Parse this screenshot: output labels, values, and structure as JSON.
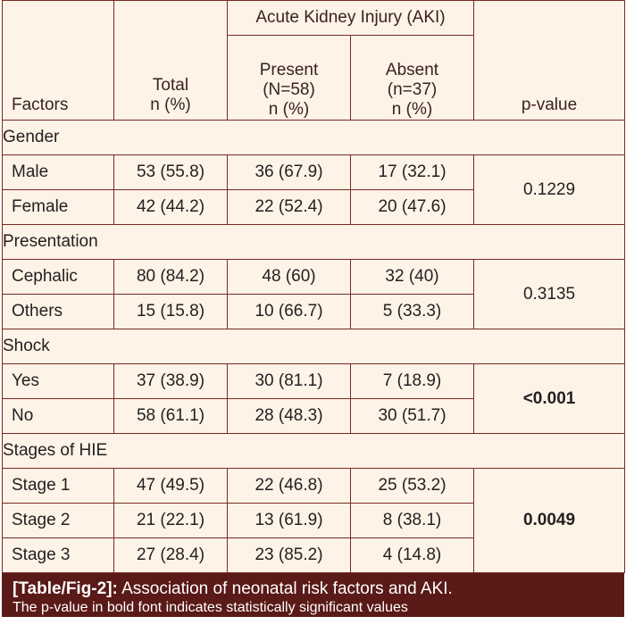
{
  "header": {
    "factors": "Factors",
    "total": [
      "Total",
      "n (%)"
    ],
    "aki_group": "Acute Kidney Injury (AKI)",
    "present": [
      "Present",
      "(N=58)",
      "n (%)"
    ],
    "absent": [
      "Absent",
      "(n=37)",
      "n (%)"
    ],
    "pvalue": "p-value"
  },
  "sections": [
    {
      "title": "Gender",
      "pvalue": "0.1229",
      "significant": false,
      "rows": [
        {
          "factor": "Male",
          "total": "53 (55.8)",
          "present": "36 (67.9)",
          "absent": "17 (32.1)"
        },
        {
          "factor": "Female",
          "total": "42 (44.2)",
          "present": "22 (52.4)",
          "absent": "20 (47.6)"
        }
      ]
    },
    {
      "title": "Presentation",
      "pvalue": "0.3135",
      "significant": false,
      "rows": [
        {
          "factor": "Cephalic",
          "total": "80 (84.2)",
          "present": "48 (60)",
          "absent": "32 (40)"
        },
        {
          "factor": "Others",
          "total": "15 (15.8)",
          "present": "10 (66.7)",
          "absent": "5 (33.3)"
        }
      ]
    },
    {
      "title": "Shock",
      "pvalue": "<0.001",
      "significant": true,
      "rows": [
        {
          "factor": "Yes",
          "total": "37 (38.9)",
          "present": "30 (81.1)",
          "absent": "7 (18.9)"
        },
        {
          "factor": "No",
          "total": "58 (61.1)",
          "present": "28 (48.3)",
          "absent": "30 (51.7)"
        }
      ]
    },
    {
      "title": "Stages of HIE",
      "pvalue": "0.0049",
      "significant": true,
      "rows": [
        {
          "factor": "Stage 1",
          "total": "47 (49.5)",
          "present": "22 (46.8)",
          "absent": "25 (53.2)"
        },
        {
          "factor": "Stage 2",
          "total": "21 (22.1)",
          "present": "13 (61.9)",
          "absent": "8 (38.1)"
        },
        {
          "factor": "Stage 3",
          "total": "27 (28.4)",
          "present": "23 (85.2)",
          "absent": "4 (14.8)"
        }
      ]
    }
  ],
  "caption": {
    "label": "[Table/Fig-2]:",
    "text": " Association of neonatal risk factors and AKI.",
    "note": "The p-value in bold font indicates statistically significant values"
  },
  "colors": {
    "border": "#7a2a22",
    "table_bg": "#fdf3e6",
    "caption_bg": "#5a1a17",
    "caption_text": "#ffffff"
  }
}
